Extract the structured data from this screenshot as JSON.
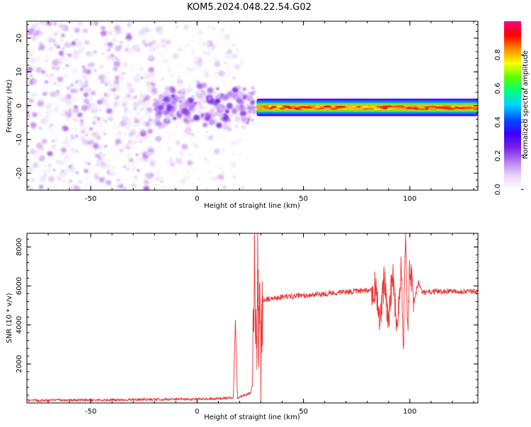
{
  "title": "KOM5.2024.048.22.54.G02",
  "chart_data": [
    {
      "type": "heatmap",
      "xlabel": "Height of straight line (km)",
      "ylabel": "Frequency (Hz)",
      "xlim": [
        -80,
        132
      ],
      "ylim": [
        -25,
        25
      ],
      "x_ticks": [
        -50,
        0,
        50,
        100
      ],
      "y_ticks": [
        -20,
        -10,
        0,
        10,
        20
      ],
      "colorbar": {
        "label": "Normalized spectral amplitude",
        "range": [
          0.0,
          1.0
        ],
        "ticks": [
          0.0,
          0.2,
          0.4,
          0.6,
          0.8
        ],
        "tick_labels": [
          "0.0",
          "0.2",
          "0.4",
          "0.6",
          "0.8"
        ],
        "colormap": [
          "#ffffff",
          "#e6d5fa",
          "#b57cf0",
          "#7a1ee8",
          "#3b00ff",
          "#0050ff",
          "#00d2ff",
          "#00ff80",
          "#5aff00",
          "#ffff00",
          "#ff8c00",
          "#ff0000",
          "#ff0080"
        ]
      },
      "regions": [
        {
          "name": "noise",
          "x": [
            -80,
            -20
          ],
          "freq": [
            -25,
            25
          ],
          "amplitude": [
            0.0,
            0.2
          ]
        },
        {
          "name": "noise-sparse",
          "x": [
            -20,
            22
          ],
          "freq": [
            -25,
            25
          ],
          "amplitude": [
            0.0,
            0.12
          ]
        },
        {
          "name": "onset",
          "x": [
            -20,
            27
          ],
          "freq": [
            -8,
            8
          ],
          "amplitude": [
            0.1,
            0.3
          ]
        },
        {
          "name": "signal-band",
          "x": [
            28,
            132
          ],
          "freq": [
            -2.5,
            1.5
          ],
          "amplitude": [
            0.35,
            0.95
          ]
        }
      ]
    },
    {
      "type": "line",
      "xlabel": "Height of straight line (km)",
      "ylabel": "SNR (10 * v/v)",
      "xlim": [
        -80,
        132
      ],
      "ylim": [
        0,
        8700
      ],
      "x_ticks": [
        -50,
        0,
        50,
        100
      ],
      "y_ticks": [
        2000,
        4000,
        6000,
        8000
      ],
      "color": "#ee3333",
      "series": [
        {
          "x": [
            -80,
            -60,
            -40,
            -20,
            0,
            10,
            17,
            18,
            19,
            20,
            25,
            26,
            27,
            28,
            28.5,
            29,
            29.5,
            30,
            30.5,
            31,
            32,
            35,
            40,
            50,
            60,
            70,
            80,
            84,
            86,
            88,
            90,
            92,
            94,
            96,
            97,
            98,
            99,
            100,
            102,
            104,
            106,
            110,
            120,
            132
          ],
          "y": [
            120,
            150,
            150,
            180,
            200,
            230,
            250,
            4200,
            250,
            300,
            500,
            900,
            7700,
            1000,
            7900,
            1500,
            7000,
            500,
            5000,
            5200,
            5300,
            5350,
            5450,
            5500,
            5600,
            5700,
            5750,
            6000,
            4200,
            6300,
            4400,
            6700,
            3800,
            7200,
            3100,
            8600,
            3800,
            6900,
            5100,
            6200,
            5650,
            5700,
            5750,
            5700
          ]
        }
      ]
    }
  ]
}
